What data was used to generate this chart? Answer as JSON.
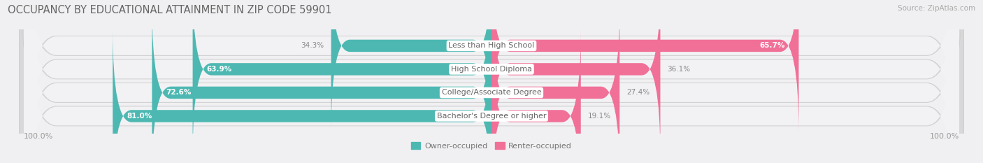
{
  "title": "OCCUPANCY BY EDUCATIONAL ATTAINMENT IN ZIP CODE 59901",
  "source": "Source: ZipAtlas.com",
  "categories": [
    "Less than High School",
    "High School Diploma",
    "College/Associate Degree",
    "Bachelor's Degree or higher"
  ],
  "owner_pct": [
    34.3,
    63.9,
    72.6,
    81.0
  ],
  "renter_pct": [
    65.7,
    36.1,
    27.4,
    19.1
  ],
  "owner_color": "#4db8b2",
  "renter_color": "#f07098",
  "row_bg_color": "#e8e8ea",
  "row_bg_inner": "#f0f0f2",
  "label_bg_color": "#ffffff",
  "title_fontsize": 10.5,
  "source_fontsize": 7.5,
  "label_fontsize": 8,
  "value_fontsize": 7.5,
  "axis_label_fontsize": 8,
  "legend_fontsize": 8,
  "left_axis_label": "100.0%",
  "right_axis_label": "100.0%"
}
